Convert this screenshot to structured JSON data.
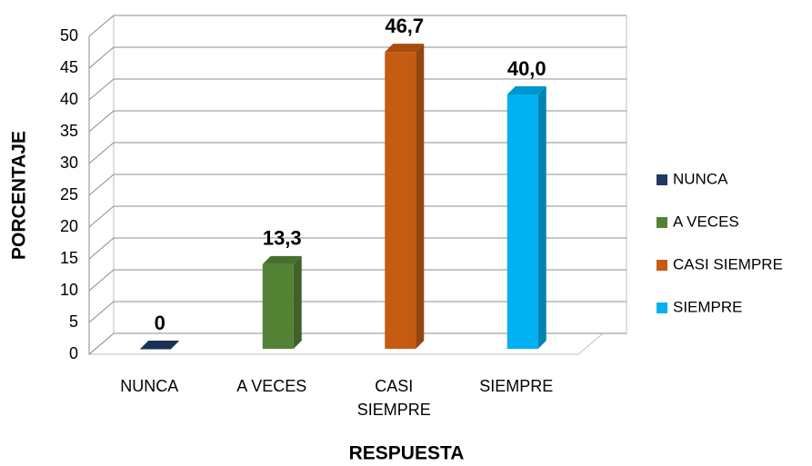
{
  "chart_data": {
    "type": "bar3d",
    "x_label": "RESPUESTA",
    "y_label": "PORCENTAJE",
    "categories": [
      "NUNCA",
      "A VECES",
      "CASI SIEMPRE",
      "SIEMPRE"
    ],
    "values": [
      0,
      13.3,
      46.7,
      40.0
    ],
    "value_labels": [
      "0",
      "13,3",
      "46,7",
      "40,0"
    ],
    "colors": [
      "#1f3864",
      "#548235",
      "#c55a11",
      "#00b0f0"
    ],
    "ylim": [
      0,
      50
    ],
    "yticks": [
      0,
      5,
      10,
      15,
      20,
      25,
      30,
      35,
      40,
      45,
      50
    ],
    "grid": true,
    "legend": "right"
  }
}
